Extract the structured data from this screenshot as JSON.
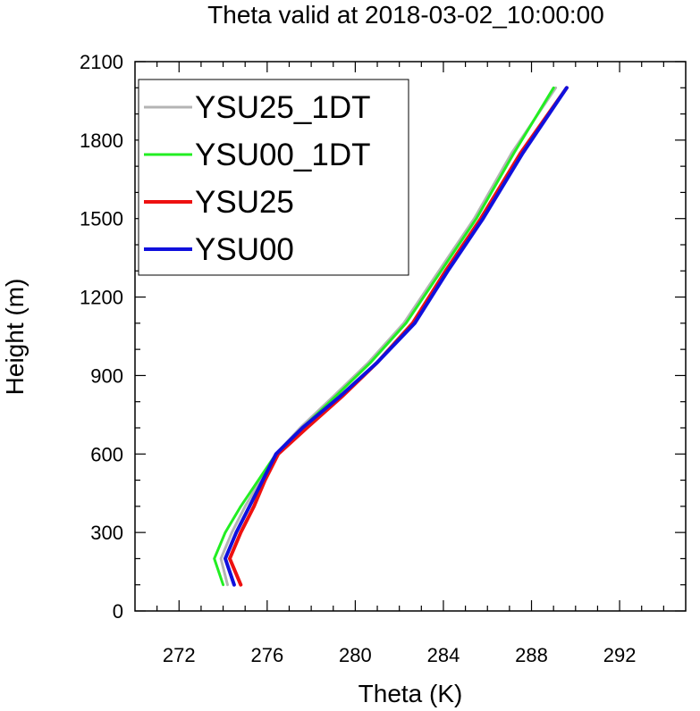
{
  "chart_data": {
    "type": "line",
    "title": "Theta valid at 2018-03-02_10:00:00",
    "xlabel": "Theta (K)",
    "ylabel": "Height (m)",
    "xlim": [
      270,
      295
    ],
    "ylim": [
      0,
      2100
    ],
    "xticks": [
      "272",
      "276",
      "280",
      "284",
      "288",
      "292"
    ],
    "yticks": [
      "0",
      "300",
      "600",
      "900",
      "1200",
      "1500",
      "1800",
      "2100"
    ],
    "grid": false,
    "legend_position": "top-left",
    "series": [
      {
        "name": "YSU25_1DT",
        "color": "#b4b4b4",
        "width": 3,
        "points": [
          [
            274.2,
            100
          ],
          [
            273.9,
            200
          ],
          [
            274.4,
            300
          ],
          [
            275.0,
            400
          ],
          [
            275.7,
            500
          ],
          [
            276.4,
            600
          ],
          [
            277.5,
            700
          ],
          [
            279.0,
            820
          ],
          [
            280.6,
            950
          ],
          [
            282.2,
            1100
          ],
          [
            283.8,
            1300
          ],
          [
            285.4,
            1500
          ],
          [
            287.1,
            1750
          ],
          [
            289.1,
            2000
          ]
        ]
      },
      {
        "name": "YSU00_1DT",
        "color": "#22ee22",
        "width": 3,
        "points": [
          [
            274.0,
            100
          ],
          [
            273.6,
            200
          ],
          [
            274.1,
            300
          ],
          [
            274.8,
            400
          ],
          [
            275.6,
            500
          ],
          [
            276.4,
            600
          ],
          [
            277.6,
            700
          ],
          [
            279.1,
            820
          ],
          [
            280.7,
            950
          ],
          [
            282.3,
            1100
          ],
          [
            283.9,
            1300
          ],
          [
            285.5,
            1500
          ],
          [
            287.2,
            1750
          ],
          [
            289.0,
            2000
          ]
        ]
      },
      {
        "name": "YSU25",
        "color": "#ee1111",
        "width": 4,
        "points": [
          [
            274.8,
            100
          ],
          [
            274.3,
            200
          ],
          [
            274.8,
            300
          ],
          [
            275.4,
            400
          ],
          [
            275.9,
            500
          ],
          [
            276.5,
            600
          ],
          [
            277.8,
            700
          ],
          [
            279.4,
            820
          ],
          [
            281.0,
            950
          ],
          [
            282.6,
            1100
          ],
          [
            284.1,
            1300
          ],
          [
            285.7,
            1500
          ],
          [
            287.5,
            1750
          ],
          [
            289.6,
            2000
          ]
        ]
      },
      {
        "name": "YSU00",
        "color": "#1010dd",
        "width": 4,
        "points": [
          [
            274.5,
            100
          ],
          [
            274.1,
            200
          ],
          [
            274.6,
            300
          ],
          [
            275.2,
            400
          ],
          [
            275.8,
            500
          ],
          [
            276.4,
            600
          ],
          [
            277.6,
            700
          ],
          [
            279.3,
            820
          ],
          [
            281.0,
            950
          ],
          [
            282.7,
            1100
          ],
          [
            284.2,
            1300
          ],
          [
            285.8,
            1500
          ],
          [
            287.6,
            1750
          ],
          [
            289.6,
            2000
          ]
        ]
      }
    ]
  }
}
